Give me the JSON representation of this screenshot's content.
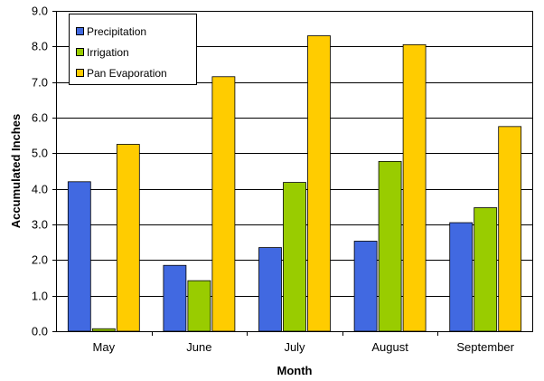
{
  "chart_data": {
    "type": "bar",
    "xlabel": "Month",
    "ylabel": "Accumulated Inches",
    "categories": [
      "May",
      "June",
      "July",
      "August",
      "September"
    ],
    "series": [
      {
        "name": "Precipitation",
        "color": "#4169E1",
        "values": [
          4.2,
          1.85,
          2.35,
          2.53,
          3.05
        ]
      },
      {
        "name": "Irrigation",
        "color": "#99CC00",
        "values": [
          0.07,
          1.42,
          4.18,
          4.77,
          3.47
        ]
      },
      {
        "name": "Pan Evaporation",
        "color": "#FFCC00",
        "values": [
          5.25,
          7.15,
          8.3,
          8.05,
          5.75
        ]
      }
    ],
    "ylim": [
      0,
      9
    ],
    "yticks": [
      "0.0",
      "1.0",
      "2.0",
      "3.0",
      "4.0",
      "5.0",
      "6.0",
      "7.0",
      "8.0",
      "9.0"
    ],
    "grid": true,
    "legend_position": "top-left"
  }
}
